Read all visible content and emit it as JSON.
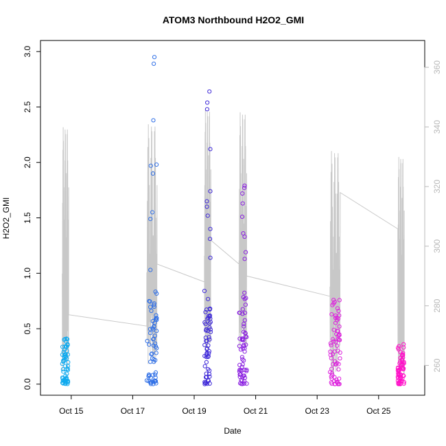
{
  "chart_data": {
    "type": "scatter",
    "title": "ATOM3 Northbound H2O2_GMI",
    "xlabel": "Date",
    "ylabel": "H2O2_GMI",
    "x_range_days": [
      "2017-10-14T00:00",
      "2017-10-26T12:00"
    ],
    "x_ticks": [
      {
        "date": "2017-10-15T00:00",
        "label": "Oct 15"
      },
      {
        "date": "2017-10-17T00:00",
        "label": "Oct 17"
      },
      {
        "date": "2017-10-19T00:00",
        "label": "Oct 19"
      },
      {
        "date": "2017-10-21T00:00",
        "label": "Oct 21"
      },
      {
        "date": "2017-10-23T00:00",
        "label": "Oct 23"
      },
      {
        "date": "2017-10-25T00:00",
        "label": "Oct 25"
      }
    ],
    "ylim": [
      -0.1,
      3.1
    ],
    "y_ticks": [
      0.0,
      0.5,
      1.0,
      1.5,
      2.0,
      2.5,
      3.0
    ],
    "y_tick_labels": [
      "0.0",
      "0.5",
      "1.0",
      "1.5",
      "2.0",
      "2.5",
      "3.0"
    ],
    "y2lim": [
      250,
      369
    ],
    "y2_ticks": [
      260,
      280,
      300,
      320,
      340,
      360
    ],
    "y2_tick_labels": [
      "260",
      "280",
      "300",
      "320",
      "340",
      "360"
    ],
    "grid": false,
    "legend": "none",
    "colors": {
      "line": "#c8c8c8",
      "right_axis": "#b8b8b8",
      "flight1": "#11aaee",
      "flight2": "#2f6fe6",
      "flight3": "#3f2ad8",
      "flight4": "#8a1fe0",
      "flight5": "#dd22dd",
      "flight6": "#ff11c8"
    },
    "flights": [
      {
        "color": "#11aaee",
        "start": "2017-10-14T17:00",
        "end": "2017-10-14T21:36",
        "y_max": 0.41,
        "peaks": [
          0.41,
          0.36,
          0.31
        ]
      },
      {
        "color": "#2f6fe6",
        "start": "2017-10-17T11:00",
        "end": "2017-10-17T19:00",
        "y_max": 2.95,
        "peaks": [
          2.95,
          2.89,
          2.38,
          1.98,
          1.97,
          1.9,
          1.55,
          1.49,
          1.03
        ]
      },
      {
        "color": "#3f2ad8",
        "start": "2017-10-19T08:00",
        "end": "2017-10-19T13:00",
        "y_max": 2.64,
        "peaks": [
          2.64,
          2.54,
          2.48,
          2.12,
          1.74,
          1.65,
          1.6,
          1.52,
          1.4,
          1.31,
          1.14
        ]
      },
      {
        "color": "#8a1fe0",
        "start": "2017-10-20T11:00",
        "end": "2017-10-20T17:00",
        "y_max": 1.79,
        "peaks": [
          1.79,
          1.77,
          1.72,
          1.63,
          1.51,
          1.36,
          1.33,
          1.19,
          1.13
        ]
      },
      {
        "color": "#dd22dd",
        "start": "2017-10-23T10:00",
        "end": "2017-10-23T18:00",
        "y_max": 0.76,
        "peaks": [
          0.76,
          0.66,
          0.62,
          0.59,
          0.52,
          0.49
        ]
      },
      {
        "color": "#ff11c8",
        "start": "2017-10-25T15:00",
        "end": "2017-10-25T20:00",
        "y_max": 0.36,
        "peaks": [
          0.36,
          0.33,
          0.29,
          0.24
        ]
      }
    ],
    "line_series": {
      "axis": "right",
      "segments": [
        {
          "start": "2017-10-14T17:00",
          "end": "2017-10-14T22:00",
          "min": 258,
          "max": 340,
          "transit_to": 277
        },
        {
          "start": "2017-10-17T11:00",
          "end": "2017-10-17T19:00",
          "min": 258,
          "max": 341,
          "transit_to": 294
        },
        {
          "start": "2017-10-19T08:00",
          "end": "2017-10-19T13:00",
          "min": 264,
          "max": 346,
          "transit_to": 302
        },
        {
          "start": "2017-10-20T11:00",
          "end": "2017-10-20T17:00",
          "min": 262,
          "max": 345,
          "transit_to": 290
        },
        {
          "start": "2017-10-23T10:00",
          "end": "2017-10-23T18:00",
          "min": 256,
          "max": 332,
          "transit_to": 318
        },
        {
          "start": "2017-10-25T15:00",
          "end": "2017-10-25T20:00",
          "min": 257,
          "max": 330,
          "transit_to": 257
        }
      ]
    }
  }
}
